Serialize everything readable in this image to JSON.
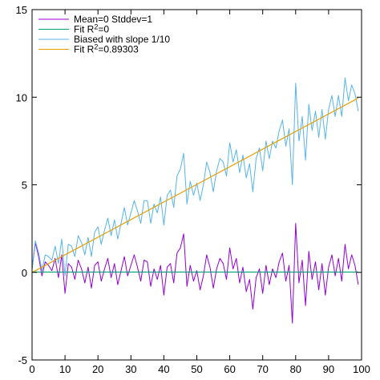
{
  "chart_data": {
    "type": "line",
    "title": "",
    "xlabel": "",
    "ylabel": "",
    "xlim": [
      0,
      100
    ],
    "ylim": [
      -5,
      15
    ],
    "x_ticks": [
      0,
      10,
      20,
      30,
      40,
      50,
      60,
      70,
      80,
      90,
      100
    ],
    "y_ticks": [
      -5,
      0,
      5,
      10,
      15
    ],
    "grid": false,
    "legend_position": "top-left",
    "series": [
      {
        "name": "Mean=0 Stddev=1",
        "name_parts": [
          "Mean=0 Stddev=1"
        ],
        "kind": "line",
        "color": "#9400d3",
        "x": [
          0,
          1,
          2,
          3,
          4,
          5,
          6,
          7,
          8,
          9,
          10,
          11,
          12,
          13,
          14,
          15,
          16,
          17,
          18,
          19,
          20,
          21,
          22,
          23,
          24,
          25,
          26,
          27,
          28,
          29,
          30,
          31,
          32,
          33,
          34,
          35,
          36,
          37,
          38,
          39,
          40,
          41,
          42,
          43,
          44,
          45,
          46,
          47,
          48,
          49,
          50,
          51,
          52,
          53,
          54,
          55,
          56,
          57,
          58,
          59,
          60,
          61,
          62,
          63,
          64,
          65,
          66,
          67,
          68,
          69,
          70,
          71,
          72,
          73,
          74,
          75,
          76,
          77,
          78,
          79,
          80,
          81,
          82,
          83,
          84,
          85,
          86,
          87,
          88,
          89,
          90,
          91,
          92,
          93,
          94,
          95,
          96,
          97,
          98,
          99
        ],
        "y": [
          0.2,
          1.7,
          0.9,
          -0.2,
          0.6,
          0.4,
          0.1,
          0.8,
          -0.3,
          1.0,
          -1.2,
          0.5,
          0.3,
          -0.4,
          0.7,
          0.2,
          -0.6,
          0.3,
          -0.9,
          0.4,
          0.6,
          -0.5,
          0.2,
          0.8,
          -0.3,
          0.5,
          -0.7,
          0.1,
          0.9,
          -0.2,
          0.4,
          1.0,
          0.3,
          -0.5,
          0.7,
          0.6,
          -0.8,
          0.2,
          -0.4,
          0.4,
          -1.3,
          0.3,
          0.5,
          -0.6,
          1.1,
          1.4,
          2.2,
          -0.8,
          0.4,
          -0.5,
          0.1,
          -1.0,
          -0.2,
          1.0,
          0.3,
          -0.9,
          0.2,
          0.8,
          0.5,
          -0.4,
          1.4,
          0.2,
          0.8,
          -0.6,
          0.3,
          -1.1,
          -0.4,
          -2.1,
          -0.3,
          0.2,
          -1.2,
          0.4,
          -0.7,
          0.2,
          -0.3,
          0.6,
          1.1,
          -0.5,
          0.4,
          -2.9,
          2.8,
          -0.6,
          0.7,
          -1.9,
          1.2,
          -0.4,
          0.6,
          -1.0,
          0.5,
          -1.3,
          0.3,
          1.0,
          -0.2,
          0.8,
          -0.5,
          1.6,
          0.2,
          1.0,
          0.4,
          -0.7
        ]
      },
      {
        "name": "Fit R²=0",
        "name_parts": [
          "Fit R",
          "2",
          "=0"
        ],
        "kind": "fit",
        "color": "#009e73",
        "x": [
          0,
          99
        ],
        "y": [
          0.02,
          0.02
        ]
      },
      {
        "name": "Biased with slope 1/10",
        "name_parts": [
          "Biased with slope 1/10"
        ],
        "kind": "line",
        "color": "#56b4e9",
        "x": [
          0,
          1,
          2,
          3,
          4,
          5,
          6,
          7,
          8,
          9,
          10,
          11,
          12,
          13,
          14,
          15,
          16,
          17,
          18,
          19,
          20,
          21,
          22,
          23,
          24,
          25,
          26,
          27,
          28,
          29,
          30,
          31,
          32,
          33,
          34,
          35,
          36,
          37,
          38,
          39,
          40,
          41,
          42,
          43,
          44,
          45,
          46,
          47,
          48,
          49,
          50,
          51,
          52,
          53,
          54,
          55,
          56,
          57,
          58,
          59,
          60,
          61,
          62,
          63,
          64,
          65,
          66,
          67,
          68,
          69,
          70,
          71,
          72,
          73,
          74,
          75,
          76,
          77,
          78,
          79,
          80,
          81,
          82,
          83,
          84,
          85,
          86,
          87,
          88,
          89,
          90,
          91,
          92,
          93,
          94,
          95,
          96,
          97,
          98,
          99
        ],
        "y": [
          0.2,
          1.8,
          1.1,
          0.1,
          1.0,
          0.9,
          0.7,
          1.5,
          0.5,
          1.9,
          -0.2,
          1.6,
          1.5,
          0.9,
          2.1,
          1.7,
          1.0,
          2.0,
          0.9,
          2.3,
          2.6,
          1.6,
          2.4,
          3.1,
          2.1,
          3.0,
          1.9,
          2.8,
          3.7,
          2.7,
          3.4,
          4.1,
          3.5,
          2.8,
          4.1,
          4.1,
          2.8,
          3.9,
          3.4,
          4.3,
          2.7,
          4.4,
          4.7,
          3.7,
          5.5,
          5.9,
          6.8,
          3.9,
          5.2,
          4.4,
          5.1,
          4.1,
          5.0,
          6.3,
          5.7,
          4.6,
          5.8,
          6.5,
          6.3,
          5.5,
          7.4,
          6.3,
          7.0,
          5.7,
          6.7,
          5.4,
          6.2,
          4.6,
          6.5,
          7.1,
          5.8,
          7.5,
          6.5,
          7.5,
          7.1,
          8.1,
          8.7,
          7.2,
          8.2,
          5.0,
          10.8,
          7.5,
          8.9,
          6.4,
          9.6,
          8.1,
          9.2,
          7.7,
          9.3,
          7.6,
          9.3,
          10.1,
          8.9,
          10.1,
          8.9,
          11.1,
          9.8,
          10.7,
          10.2,
          9.2
        ]
      },
      {
        "name": "Fit R²=0.89303",
        "name_parts": [
          "Fit R",
          "2",
          "=0.89303"
        ],
        "kind": "fit",
        "color": "#e69f00",
        "x": [
          0,
          99
        ],
        "y": [
          0.0,
          9.95
        ]
      }
    ]
  }
}
